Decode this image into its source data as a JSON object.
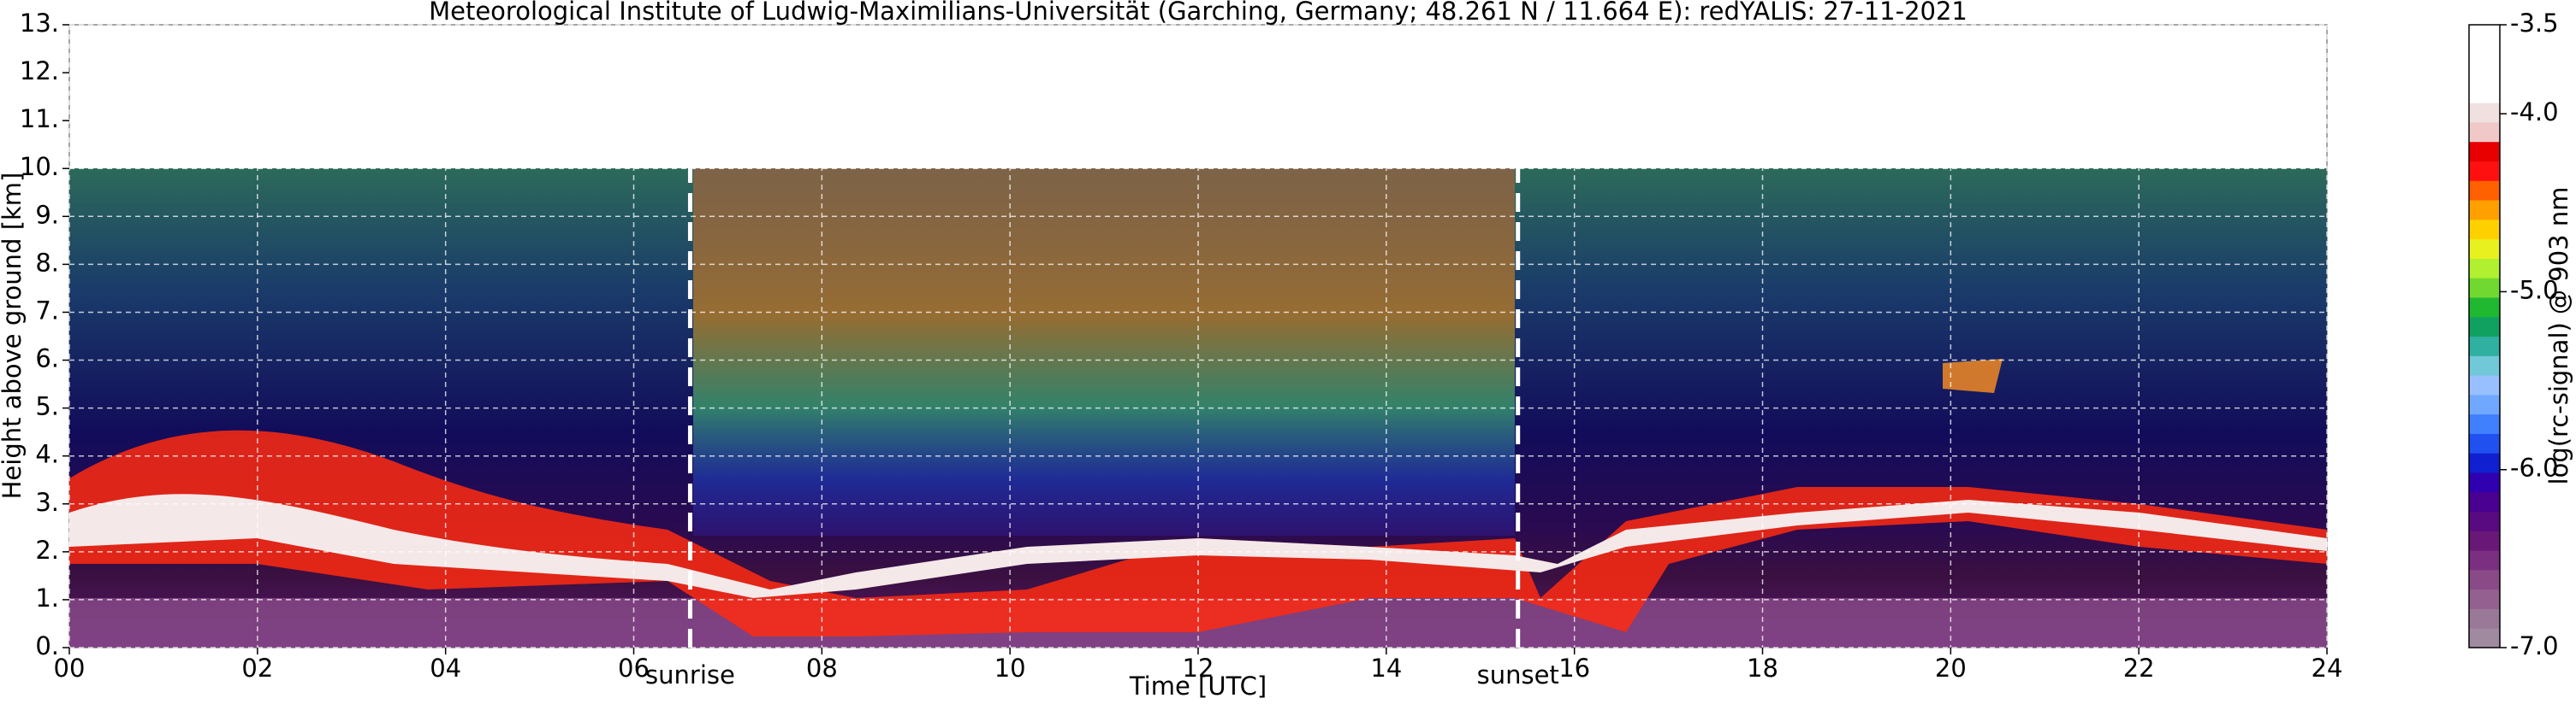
{
  "chart_data": {
    "type": "heatmap",
    "title": "Meteorological Institute of Ludwig-Maximilians-Universität (Garching, Germany; 48.261 N / 11.664 E):    redYALIS: 27-11-2021",
    "xlabel": "Time [UTC]",
    "ylabel": "Height above ground [km]",
    "xlim": [
      0,
      24
    ],
    "xticks": [
      {
        "value": 0,
        "label": "00"
      },
      {
        "value": 2,
        "label": "02"
      },
      {
        "value": 4,
        "label": "04"
      },
      {
        "value": 6,
        "label": "06"
      },
      {
        "value": 8,
        "label": "08"
      },
      {
        "value": 10,
        "label": "10"
      },
      {
        "value": 12,
        "label": "12"
      },
      {
        "value": 14,
        "label": "14"
      },
      {
        "value": 16,
        "label": "16"
      },
      {
        "value": 18,
        "label": "18"
      },
      {
        "value": 20,
        "label": "20"
      },
      {
        "value": 22,
        "label": "22"
      },
      {
        "value": 24,
        "label": "24"
      }
    ],
    "ylim": [
      0,
      13
    ],
    "yticks": [
      {
        "value": 0,
        "label": "0."
      },
      {
        "value": 1,
        "label": "1."
      },
      {
        "value": 2,
        "label": "2."
      },
      {
        "value": 3,
        "label": "3."
      },
      {
        "value": 4,
        "label": "4."
      },
      {
        "value": 5,
        "label": "5."
      },
      {
        "value": 6,
        "label": "6."
      },
      {
        "value": 7,
        "label": "7."
      },
      {
        "value": 8,
        "label": "8."
      },
      {
        "value": 9,
        "label": "9."
      },
      {
        "value": 10,
        "label": "10."
      },
      {
        "value": 11,
        "label": "11."
      },
      {
        "value": 12,
        "label": "12."
      },
      {
        "value": 13,
        "label": "13."
      }
    ],
    "grid": true,
    "annotations": [
      {
        "label": "sunrise",
        "x": 6.6
      },
      {
        "label": "sunset",
        "x": 15.4
      }
    ],
    "colorbar": {
      "label": "log(rc-signal) @ 903 nm",
      "lim": [
        -7.0,
        -3.5
      ],
      "ticks": [
        {
          "value": -7.0,
          "label": "-7.0"
        },
        {
          "value": -6.0,
          "label": "-6.0"
        },
        {
          "value": -5.0,
          "label": "-5.0"
        },
        {
          "value": -4.0,
          "label": "-4.0"
        },
        {
          "value": -3.5,
          "label": "-3.5"
        }
      ],
      "colors": [
        "#a08aa0",
        "#9a7898",
        "#94608f",
        "#8a4a88",
        "#7a2f80",
        "#6a1878",
        "#5a0a80",
        "#4a0090",
        "#3000b0",
        "#1020d0",
        "#2050f0",
        "#4080ff",
        "#70a8ff",
        "#98c0ff",
        "#70c8d8",
        "#30b0a0",
        "#10a060",
        "#20b830",
        "#70d830",
        "#b0f030",
        "#e8f020",
        "#ffd000",
        "#ffa000",
        "#ff6000",
        "#ff1010",
        "#e80000",
        "#f0c8c8",
        "#f0e0e0",
        "#ffffff",
        "#ffffff",
        "#ffffff",
        "#ffffff"
      ]
    }
  }
}
